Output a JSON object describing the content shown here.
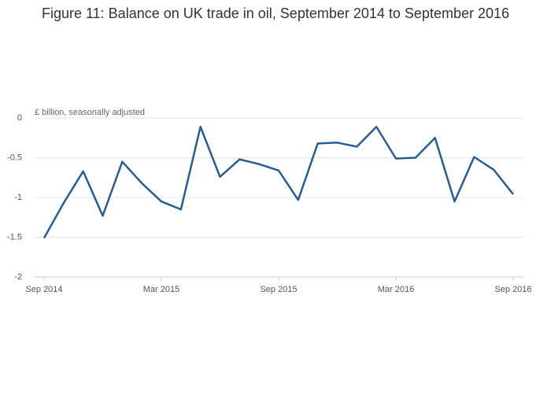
{
  "chart_data": {
    "type": "line",
    "title": "Figure 11: Balance on UK trade in oil, September 2014 to September 2016",
    "y_label": "£ billion, seasonally adjusted",
    "categories": [
      "Sep 2014",
      null,
      null,
      null,
      null,
      null,
      "Mar 2015",
      null,
      null,
      null,
      null,
      null,
      "Sep 2015",
      null,
      null,
      null,
      null,
      null,
      "Mar 2016",
      null,
      null,
      null,
      null,
      null,
      "Sep 2016"
    ],
    "values": [
      -1.51,
      -1.07,
      -0.67,
      -1.23,
      -0.55,
      -0.82,
      -1.05,
      -1.15,
      -0.11,
      -0.74,
      -0.52,
      -0.58,
      -0.66,
      -1.03,
      -0.32,
      -0.31,
      -0.36,
      -0.11,
      -0.51,
      -0.5,
      -0.25,
      -1.05,
      -0.49,
      -0.65,
      -0.96
    ],
    "color": "#2a5d8c",
    "ylim": [
      -2,
      0
    ],
    "yticks": [
      0,
      -0.5,
      -1,
      -1.5,
      -2
    ],
    "grid": true
  }
}
